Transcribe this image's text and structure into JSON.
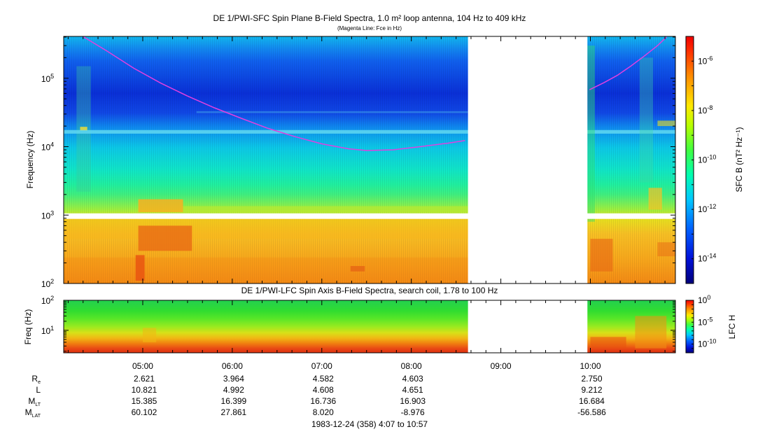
{
  "chart_data": [
    {
      "type": "heatmap",
      "title": "DE 1/PWI-SFC  Spin Plane B-Field Spectra, 1.0 m² loop antenna, 104 Hz to 409 kHz",
      "subtitle": "(Magenta Line: Fce in Hz)",
      "xlabel": "1983-12-24 (358) 4:07 to 10:57",
      "ylabel": "Frequency (Hz)",
      "yscale": "log",
      "ylim": [
        100,
        409000
      ],
      "y_ticks": [
        {
          "value": 100,
          "base": "10",
          "exp": "2"
        },
        {
          "value": 1000,
          "base": "10",
          "exp": "3"
        },
        {
          "value": 10000,
          "base": "10",
          "exp": "4"
        },
        {
          "value": 100000,
          "base": "10",
          "exp": "5"
        }
      ],
      "data_gap_hours": [
        8.633,
        9.967
      ],
      "white_band_hz": [
        880,
        1060
      ],
      "colorbar": {
        "label": "SFC B (nT² Hz⁻¹)",
        "scale": "log",
        "range_exp": [
          -15,
          -5
        ],
        "ticks": [
          {
            "value_exp": -6,
            "base": "10",
            "exp": "-6"
          },
          {
            "value_exp": -8,
            "base": "10",
            "exp": "-8"
          },
          {
            "value_exp": -10,
            "base": "10",
            "exp": "-10"
          },
          {
            "value_exp": -12,
            "base": "10",
            "exp": "-12"
          },
          {
            "value_exp": -14,
            "base": "10",
            "exp": "-14"
          }
        ]
      },
      "series": [
        {
          "name": "Fce (Hz)",
          "color": "#e040e0",
          "segments": [
            {
              "x_hours": [
                4.33,
                4.6,
                4.9,
                5.2,
                5.5,
                5.8,
                6.1,
                6.4,
                6.7,
                7.0,
                7.3,
                7.5,
                7.8,
                8.1,
                8.4,
                8.6
              ],
              "y_hz": [
                420000,
                250000,
                140000,
                85000,
                55000,
                37000,
                26000,
                18500,
                14000,
                11000,
                9300,
                8800,
                9000,
                10000,
                11200,
                12300
              ]
            },
            {
              "x_hours": [
                9.99,
                10.15,
                10.3,
                10.45,
                10.6,
                10.75,
                10.85
              ],
              "y_hz": [
                68000,
                86000,
                110000,
                150000,
                210000,
                300000,
                400000
              ]
            }
          ]
        }
      ]
    },
    {
      "type": "heatmap",
      "title": "DE 1/PWI-LFC  Spin Axis B-Field Spectra, search coil, 1.78 to 100 Hz",
      "ylabel": "Freq (Hz)",
      "yscale": "log",
      "ylim": [
        1.78,
        100
      ],
      "y_ticks": [
        {
          "value": 10,
          "base": "10",
          "exp": "1"
        },
        {
          "value": 100,
          "base": "10",
          "exp": "2"
        }
      ],
      "data_gap_hours": [
        8.633,
        9.967
      ],
      "colorbar": {
        "label": "LFC H",
        "scale": "log",
        "range_exp": [
          -12,
          0
        ],
        "ticks": [
          {
            "value_exp": 0,
            "base": "10",
            "exp": "0"
          },
          {
            "value_exp": -5,
            "base": "10",
            "exp": "-5"
          },
          {
            "value_exp": -10,
            "base": "10",
            "exp": "-10"
          }
        ]
      }
    }
  ],
  "x_axis": {
    "range_hours": [
      4.1167,
      10.95
    ],
    "ticks": [
      {
        "hour": 5,
        "label": "05:00"
      },
      {
        "hour": 6,
        "label": "06:00"
      },
      {
        "hour": 7,
        "label": "07:00"
      },
      {
        "hour": 8,
        "label": "08:00"
      },
      {
        "hour": 9,
        "label": "09:00"
      },
      {
        "hour": 10,
        "label": "10:00"
      }
    ]
  },
  "ephemeris": [
    {
      "base": "R",
      "sub": "e",
      "hours": [
        5,
        6,
        7,
        8,
        10
      ],
      "values": [
        "2.621",
        "3.964",
        "4.582",
        "4.603",
        "2.750"
      ]
    },
    {
      "base": "L",
      "sub": "",
      "hours": [
        5,
        6,
        7,
        8,
        10
      ],
      "values": [
        "10.821",
        "4.992",
        "4.608",
        "4.651",
        "9.212"
      ]
    },
    {
      "base": "M",
      "sub": "LT",
      "hours": [
        5,
        6,
        7,
        8,
        10
      ],
      "values": [
        "15.385",
        "16.399",
        "16.736",
        "16.903",
        "16.684"
      ]
    },
    {
      "base": "M",
      "sub": "LAT",
      "hours": [
        5,
        6,
        7,
        8,
        10
      ],
      "values": [
        "60.102",
        "27.861",
        "8.020",
        "-8.976",
        "-56.586"
      ]
    }
  ]
}
